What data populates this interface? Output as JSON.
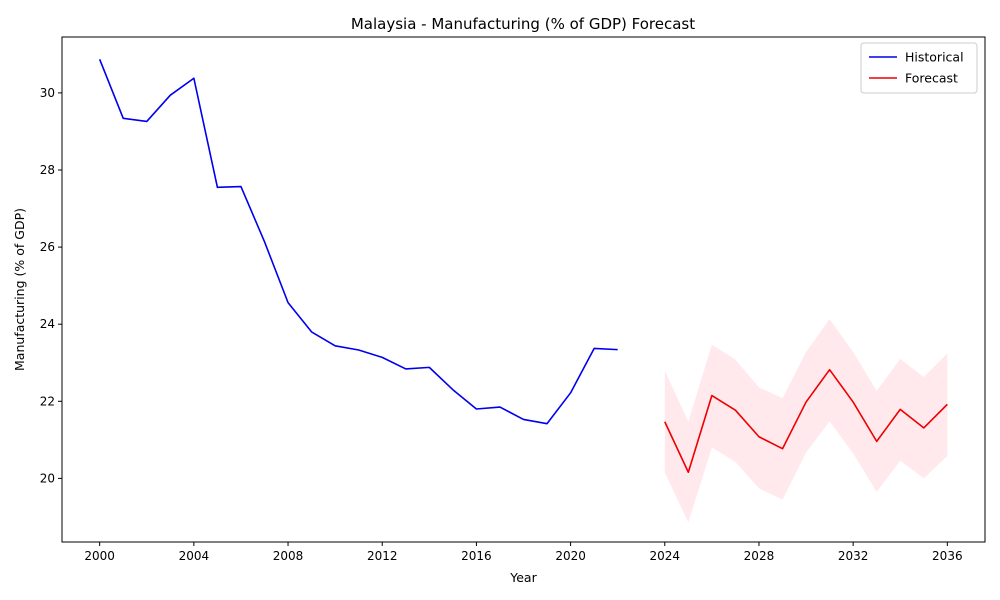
{
  "chart_data": {
    "type": "line",
    "title": "Malaysia - Manufacturing (% of GDP) Forecast",
    "xlabel": "Year",
    "ylabel": "Manufacturing (% of GDP)",
    "xlim": [
      1998.4,
      2037.6
    ],
    "ylim": [
      18.35,
      31.45
    ],
    "x_ticks": [
      2000,
      2004,
      2008,
      2012,
      2016,
      2020,
      2024,
      2028,
      2032,
      2036
    ],
    "y_ticks": [
      20,
      22,
      24,
      26,
      28,
      30
    ],
    "grid": false,
    "legend_position": "top-right",
    "series": [
      {
        "name": "Historical",
        "color": "#0000ee",
        "x": [
          2000,
          2001,
          2002,
          2003,
          2004,
          2005,
          2006,
          2007,
          2008,
          2009,
          2010,
          2011,
          2012,
          2013,
          2014,
          2015,
          2016,
          2017,
          2018,
          2019,
          2020,
          2021,
          2022
        ],
        "y": [
          30.87,
          29.34,
          29.26,
          29.94,
          30.38,
          27.55,
          27.57,
          26.14,
          24.56,
          23.8,
          23.44,
          23.33,
          23.14,
          22.84,
          22.88,
          22.3,
          21.8,
          21.85,
          21.53,
          21.42,
          22.22,
          23.37,
          23.34
        ]
      },
      {
        "name": "Forecast",
        "color": "#ee0000",
        "x": [
          2024,
          2025,
          2026,
          2027,
          2028,
          2029,
          2030,
          2031,
          2032,
          2033,
          2034,
          2035,
          2036
        ],
        "y": [
          21.47,
          20.16,
          22.15,
          21.77,
          21.08,
          20.77,
          21.98,
          22.82,
          21.98,
          20.96,
          21.79,
          21.31,
          21.92
        ]
      }
    ],
    "confidence_band": {
      "color": "#ffc0cb",
      "x": [
        2024,
        2025,
        2026,
        2027,
        2028,
        2029,
        2030,
        2031,
        2032,
        2033,
        2034,
        2035,
        2036
      ],
      "lower": [
        20.15,
        18.86,
        20.8,
        20.43,
        19.74,
        19.45,
        20.67,
        21.48,
        20.65,
        19.65,
        20.46,
        20.0,
        20.58
      ],
      "upper": [
        22.8,
        21.47,
        23.47,
        23.08,
        22.36,
        22.08,
        23.28,
        24.13,
        23.28,
        22.27,
        23.1,
        22.63,
        23.24
      ]
    }
  }
}
